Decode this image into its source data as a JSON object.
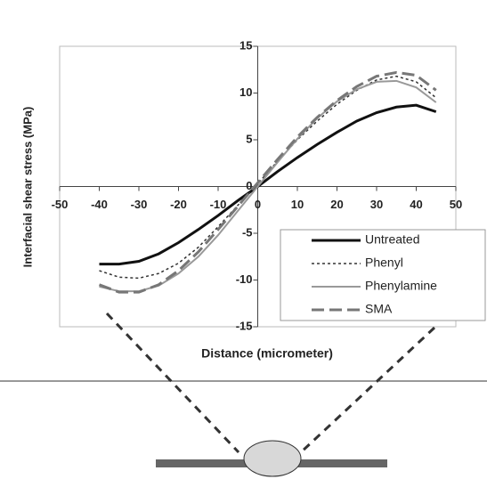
{
  "chart_data": {
    "type": "line",
    "y_label": "Interfacial shear stress (MPa)",
    "x_label": "Distance (micrometer)",
    "x": [
      -40,
      -35,
      -30,
      -25,
      -20,
      -15,
      -10,
      -5,
      0,
      5,
      10,
      15,
      20,
      25,
      30,
      35,
      40,
      45
    ],
    "series": [
      {
        "name": "Untreated",
        "color": "#111111",
        "line_style": "thick",
        "values": [
          -8.3,
          -8.3,
          -8.0,
          -7.2,
          -6.0,
          -4.6,
          -3.1,
          -1.5,
          0,
          1.6,
          3.1,
          4.5,
          5.8,
          7.0,
          7.9,
          8.5,
          8.7,
          8.0
        ]
      },
      {
        "name": "Phenyl",
        "color": "#333333",
        "line_style": "dotted",
        "values": [
          -9.0,
          -9.7,
          -9.8,
          -9.3,
          -8.2,
          -6.5,
          -4.3,
          -2.0,
          0.3,
          2.7,
          5.0,
          7.0,
          8.8,
          10.3,
          11.4,
          11.8,
          11.2,
          9.5
        ]
      },
      {
        "name": "Phenylamine",
        "color": "#999999",
        "line_style": "solid",
        "values": [
          -10.7,
          -11.2,
          -11.2,
          -10.6,
          -9.3,
          -7.5,
          -5.2,
          -2.6,
          0,
          2.6,
          5.1,
          7.3,
          9.1,
          10.4,
          11.2,
          11.3,
          10.6,
          9.0
        ]
      },
      {
        "name": "SMA",
        "color": "#777777",
        "line_style": "dashed",
        "values": [
          -10.5,
          -11.3,
          -11.3,
          -10.5,
          -9.0,
          -7.0,
          -4.6,
          -2.1,
          0.4,
          2.9,
          5.3,
          7.4,
          9.2,
          10.7,
          11.8,
          12.2,
          11.9,
          10.3
        ]
      }
    ],
    "xlim": [
      -50,
      50
    ],
    "xticks": [
      -50,
      -40,
      -30,
      -20,
      -10,
      0,
      10,
      20,
      30,
      40,
      50
    ],
    "ylim": [
      -15,
      15
    ],
    "yticks": [
      -15,
      -10,
      -5,
      0,
      5,
      10,
      15
    ]
  }
}
